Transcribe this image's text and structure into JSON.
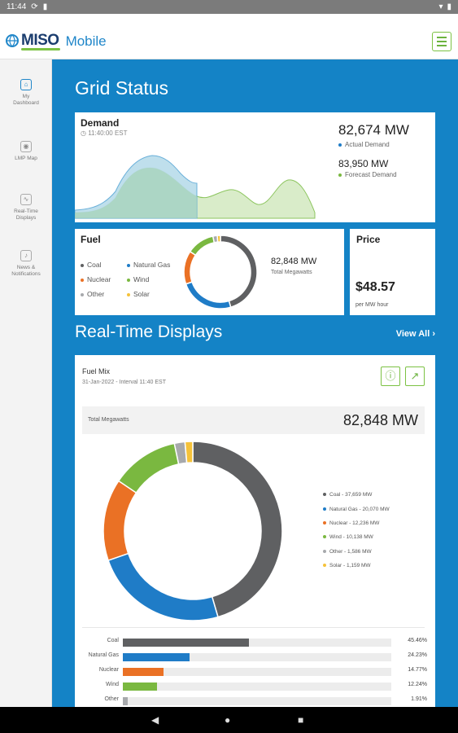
{
  "status_bar": {
    "time": "11:44"
  },
  "app": {
    "logo": "MISO",
    "subtitle": "Mobile"
  },
  "sidebar": {
    "items": [
      {
        "label": "My Dashboard",
        "icon": "home-icon"
      },
      {
        "label": "LMP Map",
        "icon": "map-pin-icon"
      },
      {
        "label": "Real-Time Displays",
        "icon": "pulse-icon"
      },
      {
        "label": "News & Notifications",
        "icon": "bell-icon"
      }
    ]
  },
  "grid_status": {
    "heading": "Grid Status",
    "demand": {
      "title": "Demand",
      "time": "11:40:00 EST",
      "actual_value": "82,674 MW",
      "actual_label": "Actual Demand",
      "forecast_value": "83,950 MW",
      "forecast_label": "Forecast Demand"
    },
    "fuel": {
      "title": "Fuel",
      "legend": [
        "Coal",
        "Natural Gas",
        "Nuclear",
        "Wind",
        "Other",
        "Solar"
      ],
      "total_value": "82,848 MW",
      "total_label": "Total Megawatts"
    },
    "price": {
      "title": "Price",
      "value": "$48.57",
      "unit": "per MW hour"
    }
  },
  "realtime": {
    "heading": "Real-Time Displays",
    "view_all": "View All"
  },
  "fuel_mix": {
    "title": "Fuel Mix",
    "date": "31-Jan-2022 - Interval 11:40 EST",
    "total_label": "Total Megawatts",
    "total_value": "82,848 MW",
    "legend": [
      "Coal - 37,659 MW",
      "Natural Gas - 20,070 MW",
      "Nuclear - 12,236 MW",
      "Wind - 10,138 MW",
      "Other - 1,586 MW",
      "Solar - 1,159 MW"
    ],
    "bars": [
      {
        "label": "Coal",
        "pct": "45.46%"
      },
      {
        "label": "Natural Gas",
        "pct": "24.23%"
      },
      {
        "label": "Nuclear",
        "pct": "14.77%"
      },
      {
        "label": "Wind",
        "pct": "12.24%"
      },
      {
        "label": "Other",
        "pct": "1.91%"
      }
    ]
  },
  "colors": {
    "coal": "#5f6062",
    "natural_gas": "#1f7cc7",
    "nuclear": "#ea7125",
    "wind": "#7ab840",
    "other": "#a7a9ac",
    "solar": "#f5c23a",
    "brand_blue": "#1483c6",
    "accent_green": "#7cc243"
  },
  "chart_data": [
    {
      "type": "pie",
      "title": "Fuel Mix",
      "categories": [
        "Coal",
        "Natural Gas",
        "Nuclear",
        "Wind",
        "Other",
        "Solar"
      ],
      "values": [
        37659,
        20070,
        12236,
        10138,
        1586,
        1159
      ],
      "units": "MW"
    },
    {
      "type": "bar",
      "categories": [
        "Coal",
        "Natural Gas",
        "Nuclear",
        "Wind",
        "Other"
      ],
      "values": [
        45.46,
        24.23,
        14.77,
        12.24,
        1.91
      ],
      "units": "%"
    },
    {
      "type": "area",
      "title": "Demand",
      "series": [
        {
          "name": "Actual Demand",
          "values": [
            62,
            61,
            62,
            66,
            74,
            82,
            83,
            81
          ]
        },
        {
          "name": "Forecast Demand",
          "values": [
            62,
            62,
            63,
            67,
            74,
            80,
            81,
            78,
            74,
            72,
            71,
            72,
            76,
            77,
            73,
            66
          ]
        }
      ]
    }
  ]
}
